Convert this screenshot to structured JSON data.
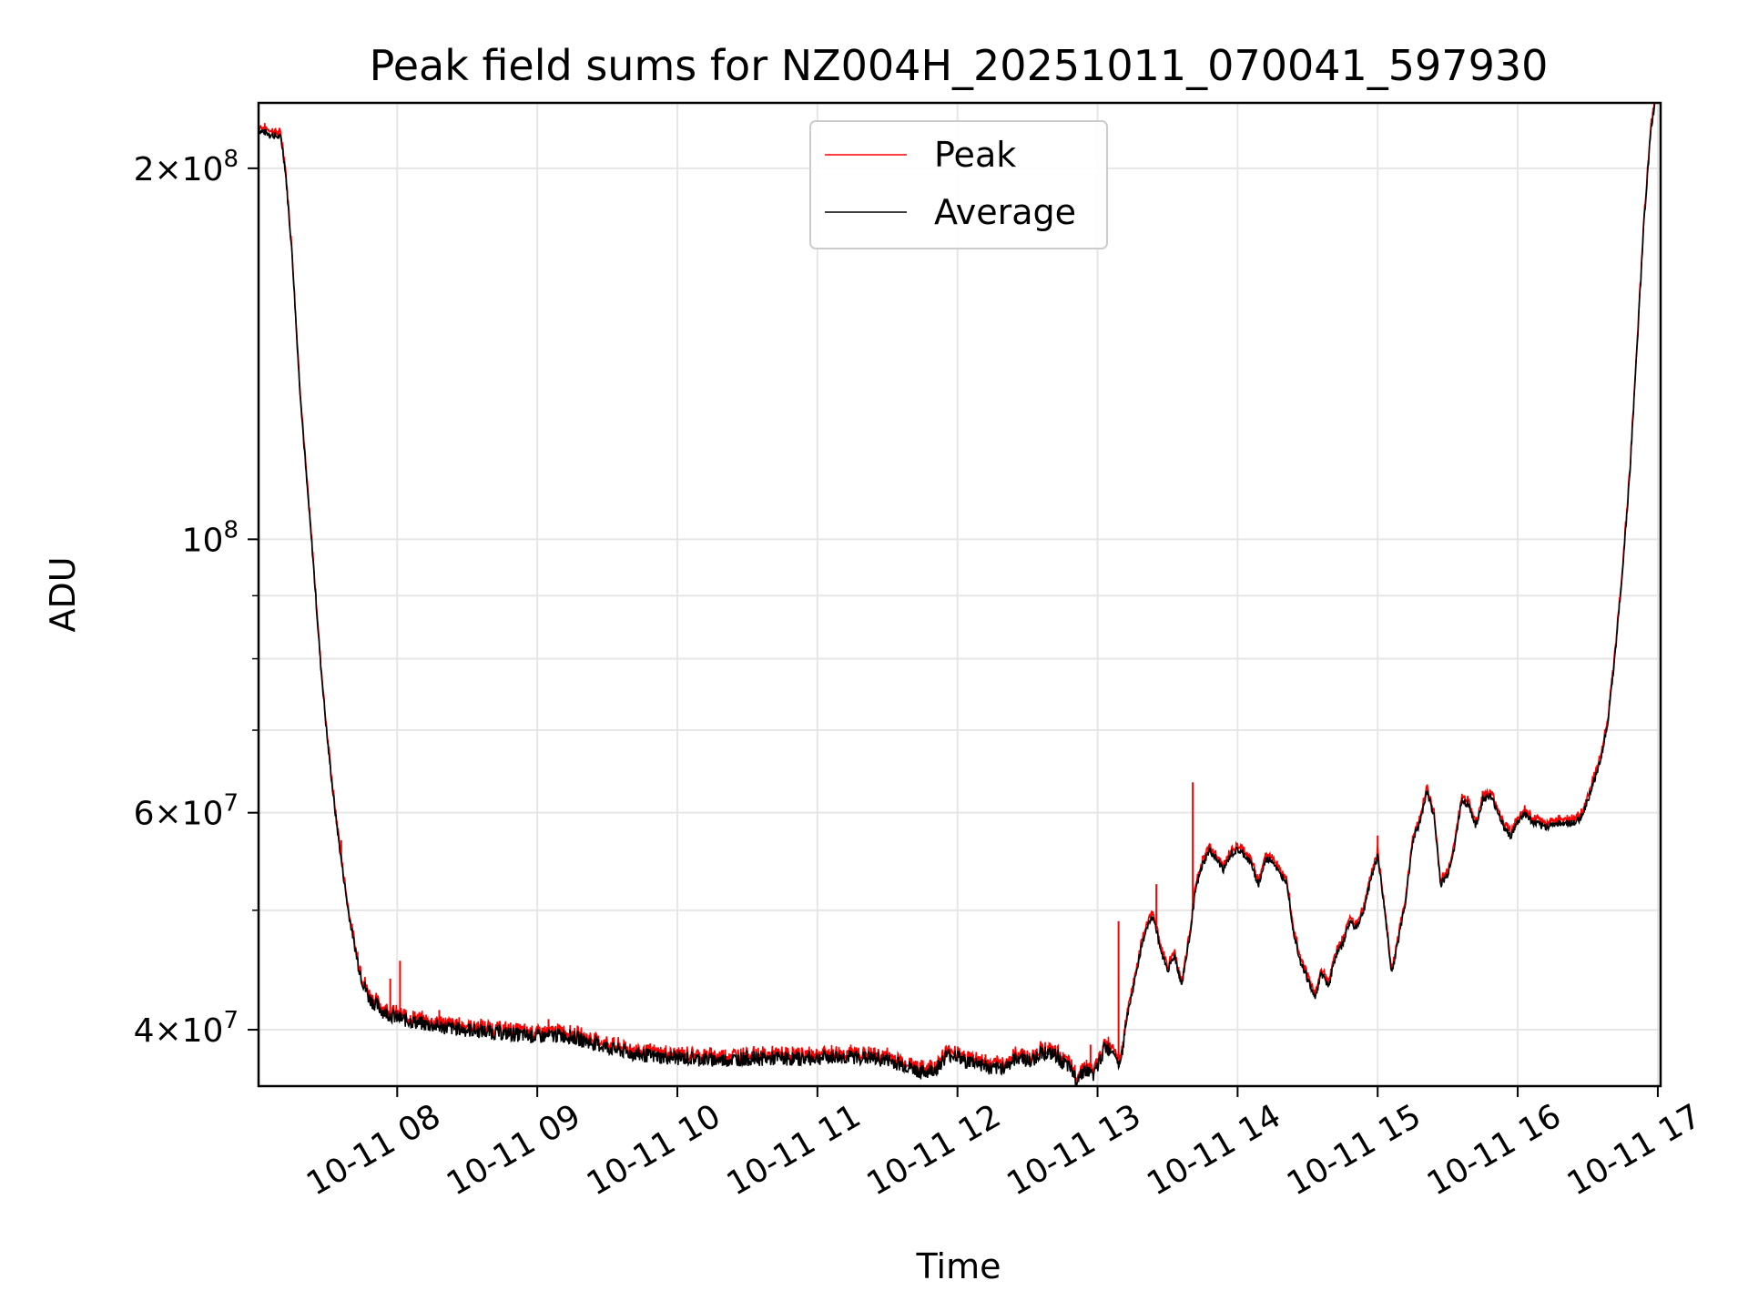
{
  "chart_data": {
    "type": "line",
    "title": "Peak field sums for NZ004H_20251011_070041_597930",
    "xlabel": "Time",
    "ylabel": "ADU",
    "yscale": "log",
    "xlim_hours": [
      7.01,
      17.02
    ],
    "ylim": [
      36000000,
      226000000
    ],
    "grid": true,
    "legend_position": "top-center",
    "x_ticks": [
      {
        "hour": 8,
        "label": "10-11 08"
      },
      {
        "hour": 9,
        "label": "10-11 09"
      },
      {
        "hour": 10,
        "label": "10-11 10"
      },
      {
        "hour": 11,
        "label": "10-11 11"
      },
      {
        "hour": 12,
        "label": "10-11 12"
      },
      {
        "hour": 13,
        "label": "10-11 13"
      },
      {
        "hour": 14,
        "label": "10-11 14"
      },
      {
        "hour": 15,
        "label": "10-11 15"
      },
      {
        "hour": 16,
        "label": "10-11 16"
      },
      {
        "hour": 17,
        "label": "10-11 17"
      }
    ],
    "y_ticks": [
      {
        "value": 40000000,
        "mant": "4",
        "exp": "7"
      },
      {
        "value": 60000000,
        "mant": "6",
        "exp": "7"
      },
      {
        "value": 100000000,
        "mant": "",
        "exp": "8"
      },
      {
        "value": 200000000,
        "mant": "2",
        "exp": "8"
      }
    ],
    "y_minor_ticks": [
      50000000,
      70000000,
      80000000,
      90000000
    ],
    "series": [
      {
        "name": "Peak",
        "color": "#ff0000",
        "spikes": [
          [
            7.6,
            57000000
          ],
          [
            7.95,
            44000000
          ],
          [
            8.02,
            45500000
          ],
          [
            8.3,
            41500000
          ],
          [
            8.85,
            40500000
          ],
          [
            9.08,
            40800000
          ],
          [
            10.5,
            38500000
          ],
          [
            11.25,
            38300000
          ],
          [
            12.2,
            38200000
          ],
          [
            12.95,
            38900000
          ],
          [
            13.15,
            49000000
          ],
          [
            13.42,
            52500000
          ],
          [
            13.68,
            63500000
          ],
          [
            15.0,
            57500000
          ],
          [
            15.75,
            62500000
          ]
        ]
      },
      {
        "name": "Average",
        "color": "#000000",
        "points": [
          [
            7.01,
            215000000
          ],
          [
            7.17,
            212000000
          ],
          [
            7.2,
            200000000
          ],
          [
            7.25,
            170000000
          ],
          [
            7.3,
            135000000
          ],
          [
            7.35,
            113000000
          ],
          [
            7.4,
            96000000
          ],
          [
            7.45,
            80000000
          ],
          [
            7.5,
            69000000
          ],
          [
            7.55,
            61000000
          ],
          [
            7.6,
            55000000
          ],
          [
            7.65,
            50000000
          ],
          [
            7.7,
            46500000
          ],
          [
            7.75,
            44000000
          ],
          [
            7.8,
            42500000
          ],
          [
            7.9,
            41500000
          ],
          [
            8.0,
            41000000
          ],
          [
            8.2,
            40500000
          ],
          [
            8.4,
            40200000
          ],
          [
            8.6,
            40000000
          ],
          [
            8.8,
            39800000
          ],
          [
            9.0,
            39600000
          ],
          [
            9.2,
            39700000
          ],
          [
            9.3,
            39400000
          ],
          [
            9.5,
            38800000
          ],
          [
            9.7,
            38300000
          ],
          [
            9.9,
            38100000
          ],
          [
            10.1,
            38000000
          ],
          [
            10.3,
            37900000
          ],
          [
            10.5,
            38000000
          ],
          [
            10.7,
            38000000
          ],
          [
            10.9,
            38000000
          ],
          [
            11.1,
            38100000
          ],
          [
            11.3,
            38100000
          ],
          [
            11.5,
            37900000
          ],
          [
            11.65,
            37400000
          ],
          [
            11.75,
            37000000
          ],
          [
            11.85,
            37300000
          ],
          [
            11.92,
            38200000
          ],
          [
            11.98,
            38300000
          ],
          [
            12.05,
            37800000
          ],
          [
            12.15,
            37700000
          ],
          [
            12.25,
            37200000
          ],
          [
            12.35,
            37500000
          ],
          [
            12.45,
            38200000
          ],
          [
            12.52,
            37700000
          ],
          [
            12.6,
            38500000
          ],
          [
            12.7,
            38200000
          ],
          [
            12.8,
            37300000
          ],
          [
            12.85,
            36600000
          ],
          [
            12.9,
            37200000
          ],
          [
            12.98,
            36900000
          ],
          [
            13.05,
            38800000
          ],
          [
            13.12,
            38500000
          ],
          [
            13.15,
            37500000
          ],
          [
            13.18,
            38500000
          ],
          [
            13.2,
            40500000
          ],
          [
            13.25,
            43000000
          ],
          [
            13.3,
            46000000
          ],
          [
            13.35,
            48500000
          ],
          [
            13.4,
            49500000
          ],
          [
            13.45,
            46500000
          ],
          [
            13.5,
            44800000
          ],
          [
            13.55,
            46000000
          ],
          [
            13.6,
            43500000
          ],
          [
            13.65,
            47000000
          ],
          [
            13.7,
            52000000
          ],
          [
            13.75,
            54500000
          ],
          [
            13.8,
            56000000
          ],
          [
            13.85,
            55000000
          ],
          [
            13.9,
            54000000
          ],
          [
            13.95,
            55500000
          ],
          [
            14.0,
            56000000
          ],
          [
            14.05,
            55500000
          ],
          [
            14.1,
            54500000
          ],
          [
            14.15,
            52500000
          ],
          [
            14.2,
            55000000
          ],
          [
            14.25,
            55000000
          ],
          [
            14.3,
            53500000
          ],
          [
            14.35,
            53000000
          ],
          [
            14.4,
            48000000
          ],
          [
            14.45,
            45500000
          ],
          [
            14.5,
            44000000
          ],
          [
            14.55,
            42500000
          ],
          [
            14.6,
            44500000
          ],
          [
            14.65,
            43500000
          ],
          [
            14.7,
            46000000
          ],
          [
            14.75,
            47000000
          ],
          [
            14.8,
            49000000
          ],
          [
            14.85,
            48500000
          ],
          [
            14.9,
            50000000
          ],
          [
            14.95,
            53000000
          ],
          [
            15.0,
            55500000
          ],
          [
            15.05,
            50000000
          ],
          [
            15.1,
            44500000
          ],
          [
            15.15,
            47500000
          ],
          [
            15.2,
            51000000
          ],
          [
            15.25,
            57000000
          ],
          [
            15.3,
            59000000
          ],
          [
            15.35,
            62500000
          ],
          [
            15.4,
            60000000
          ],
          [
            15.45,
            52500000
          ],
          [
            15.5,
            53500000
          ],
          [
            15.55,
            56500000
          ],
          [
            15.6,
            61500000
          ],
          [
            15.65,
            61000000
          ],
          [
            15.7,
            58500000
          ],
          [
            15.75,
            61500000
          ],
          [
            15.8,
            62000000
          ],
          [
            15.85,
            60500000
          ],
          [
            15.9,
            58500000
          ],
          [
            15.95,
            57500000
          ],
          [
            16.0,
            59000000
          ],
          [
            16.05,
            60000000
          ],
          [
            16.1,
            59000000
          ],
          [
            16.2,
            58500000
          ],
          [
            16.3,
            59000000
          ],
          [
            16.4,
            58800000
          ],
          [
            16.45,
            59500000
          ],
          [
            16.5,
            61500000
          ],
          [
            16.55,
            64000000
          ],
          [
            16.6,
            67000000
          ],
          [
            16.65,
            72000000
          ],
          [
            16.7,
            82000000
          ],
          [
            16.75,
            95000000
          ],
          [
            16.8,
            113000000
          ],
          [
            16.85,
            142000000
          ],
          [
            16.9,
            180000000
          ],
          [
            16.95,
            215000000
          ],
          [
            16.98,
            226000000
          ]
        ]
      }
    ]
  }
}
